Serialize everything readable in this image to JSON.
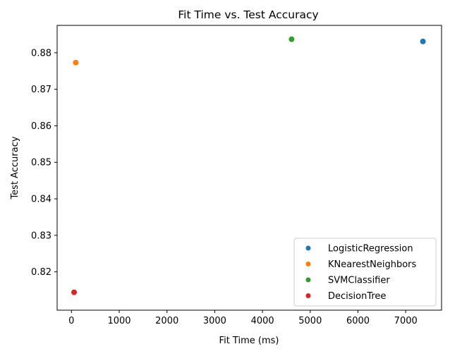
{
  "chart_data": {
    "type": "scatter",
    "title": "Fit Time vs. Test Accuracy",
    "xlabel": "Fit Time (ms)",
    "ylabel": "Test Accuracy",
    "xlim": [
      -300,
      7750
    ],
    "ylim": [
      0.8095,
      0.8875
    ],
    "xticks": [
      0,
      1000,
      2000,
      3000,
      4000,
      5000,
      6000,
      7000
    ],
    "xtick_labels": [
      "0",
      "1000",
      "2000",
      "3000",
      "4000",
      "5000",
      "6000",
      "7000"
    ],
    "yticks": [
      0.82,
      0.83,
      0.84,
      0.85,
      0.86,
      0.87,
      0.88
    ],
    "ytick_labels": [
      "0.82",
      "0.83",
      "0.84",
      "0.85",
      "0.86",
      "0.87",
      "0.88"
    ],
    "grid": false,
    "legend_position": "lower-right",
    "series": [
      {
        "name": "LogisticRegression",
        "color": "#1f77b4",
        "x": [
          7360
        ],
        "y": [
          0.8831
        ]
      },
      {
        "name": "KNearestNeighbors",
        "color": "#ff7f0e",
        "x": [
          90
        ],
        "y": [
          0.8773
        ]
      },
      {
        "name": "SVMClassifier",
        "color": "#2ca02c",
        "x": [
          4610
        ],
        "y": [
          0.8837
        ]
      },
      {
        "name": "DecisionTree",
        "color": "#d62728",
        "x": [
          55
        ],
        "y": [
          0.8144
        ]
      }
    ]
  }
}
